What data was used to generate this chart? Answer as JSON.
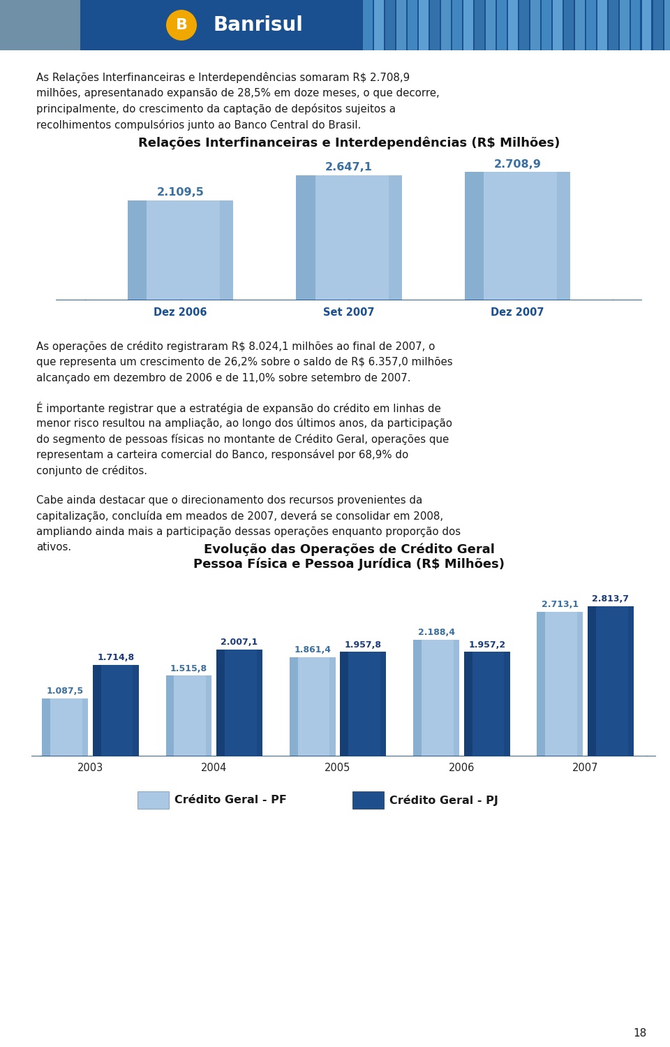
{
  "page_bg": "#ffffff",
  "body_text_1_lines": [
    "As Relações Interfinanceiras e Interdependências somaram R$ 2.708,9",
    "milhões, apresentanado expansão de 28,5% em doze meses, o que decorre,",
    "principalmente, do crescimento da captação de depósitos sujeitos a",
    "recolhimentos compulsórios junto ao Banco Central do Brasil."
  ],
  "chart1_title": "Relações Interfinanceiras e Interdependências (R$ Milhões)",
  "chart1_categories": [
    "Dez 2006",
    "Set 2007",
    "Dez 2007"
  ],
  "chart1_values": [
    2109.5,
    2647.1,
    2708.9
  ],
  "chart1_labels": [
    "2.109,5",
    "2.647,1",
    "2.708,9"
  ],
  "chart1_bar_color_light": "#aac8e4",
  "chart1_bar_color_dark": "#6090b8",
  "chart1_label_color": "#3a6fa0",
  "chart1_axis_color": "#1a5090",
  "body_text_2_lines": [
    "As operações de crédito registraram R$ 8.024,1 milhões ao final de 2007, o",
    "que representa um crescimento de 26,2% sobre o saldo de R$ 6.357,0 milhões",
    "alcançado em dezembro de 2006 e de 11,0% sobre setembro de 2007."
  ],
  "body_text_3_lines": [
    "É importante registrar que a estratégia de expansão do crédito em linhas de",
    "menor risco resultou na ampliação, ao longo dos últimos anos, da participação",
    "do segmento de pessoas físicas no montante de Crédito Geral, operações que",
    "representam a carteira comercial do Banco, responsável por 68,9% do",
    "conjunto de créditos."
  ],
  "body_text_4_lines": [
    "Cabe ainda destacar que o direcionamento dos recursos provenientes da",
    "capitalização, concluída em meados de 2007, deverá se consolidar em 2008,",
    "ampliando ainda mais a participação dessas operações enquanto proporção dos",
    "ativos."
  ],
  "chart2_title_line1": "Evolução das Operações de Crédito Geral",
  "chart2_title_line2": "Pessoa Física e Pessoa Jurídica (R$ Milhões)",
  "chart2_categories": [
    "2003",
    "2004",
    "2005",
    "2006",
    "2007"
  ],
  "chart2_values_pf": [
    1087.5,
    1515.8,
    1861.4,
    2188.4,
    2713.1
  ],
  "chart2_values_pj": [
    1714.8,
    2007.1,
    1957.8,
    1957.2,
    2813.7
  ],
  "chart2_labels_pf": [
    "1.087,5",
    "1.515,8",
    "1.861,4",
    "2.188,4",
    "2.713,1"
  ],
  "chart2_labels_pj": [
    "1.714,8",
    "2.007,1",
    "1.957,8",
    "1.957,2",
    "2.813,7"
  ],
  "chart2_color_pf_light": "#aac8e4",
  "chart2_color_pf_dark": "#6090b8",
  "chart2_color_pj_light": "#1e4e8c",
  "chart2_color_pj_dark": "#0e2e5c",
  "chart2_label_color_pf": "#3a6fa0",
  "chart2_label_color_pj": "#1a3a7a",
  "chart2_legend_pf": "Crédito Geral - PF",
  "chart2_legend_pj": "Crédito Geral - PJ",
  "chart2_axis_color": "#1a5090",
  "page_number": "18",
  "text_font_size": 10.8,
  "body_text_color": "#1a1a1a",
  "title_font_size": 13.0
}
